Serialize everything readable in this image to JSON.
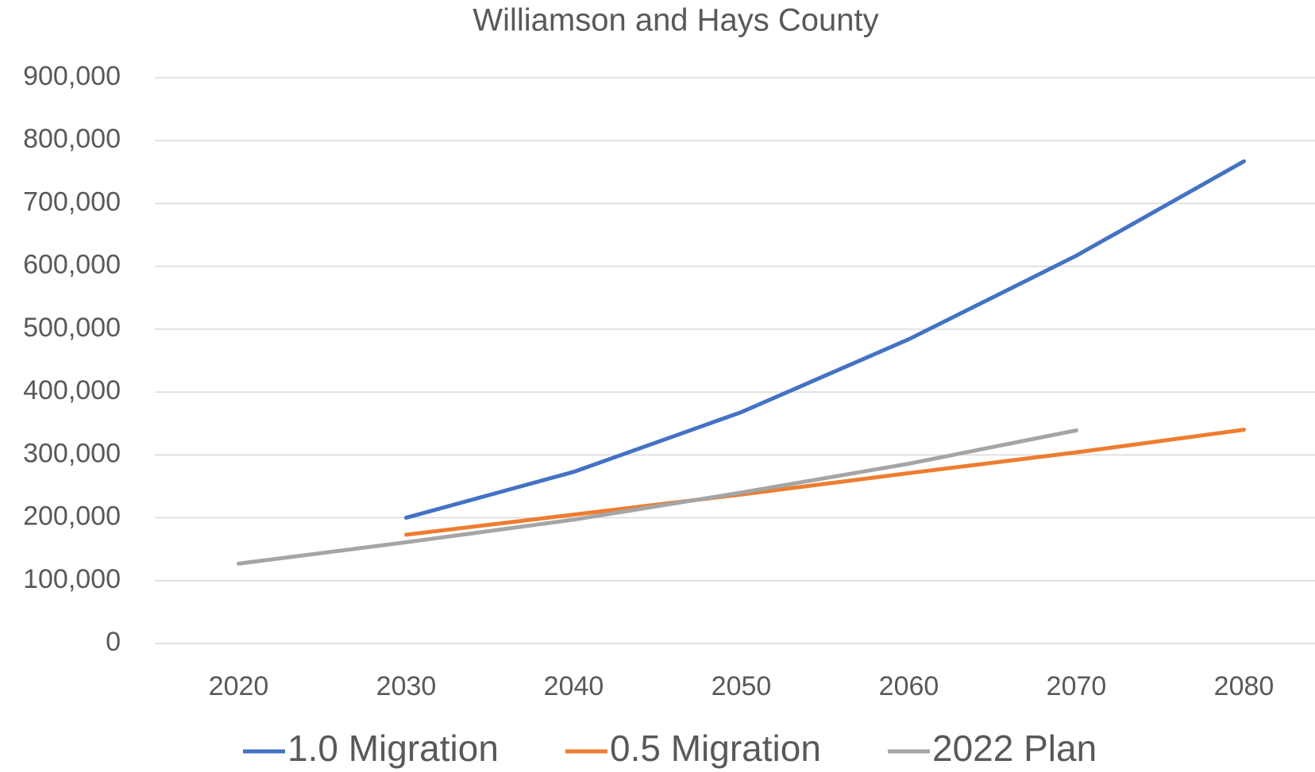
{
  "chart_data": {
    "type": "line",
    "title": "Williamson and Hays County",
    "categories": [
      "2020",
      "2030",
      "2040",
      "2050",
      "2060",
      "2070",
      "2080"
    ],
    "series": [
      {
        "name": "1.0 Migration",
        "color": "#4472c4",
        "values": [
          null,
          200000,
          273000,
          368000,
          484000,
          617000,
          767000
        ]
      },
      {
        "name": "0.5 Migration",
        "color": "#ed7d31",
        "values": [
          null,
          173000,
          205000,
          237000,
          271000,
          304000,
          340000
        ]
      },
      {
        "name": "2022 Plan",
        "color": "#a5a5a5",
        "values": [
          127000,
          161000,
          197000,
          240000,
          286000,
          339000,
          null
        ]
      }
    ],
    "ylim": [
      0,
      900000
    ],
    "yticks": [
      0,
      {
        "value": 100000,
        "label": "100,000"
      },
      {
        "value": 200000,
        "label": "200,000"
      },
      {
        "value": 300000,
        "label": "300,000"
      },
      {
        "value": 400000,
        "label": "400,000"
      },
      {
        "value": 500000,
        "label": "500,000"
      },
      {
        "value": 600000,
        "label": "600,000"
      },
      {
        "value": 700000,
        "label": "700,000"
      },
      {
        "value": 800000,
        "label": "800,000"
      },
      {
        "value": 900000,
        "label": "900,000"
      }
    ],
    "grid": true,
    "legend": "bottom"
  }
}
